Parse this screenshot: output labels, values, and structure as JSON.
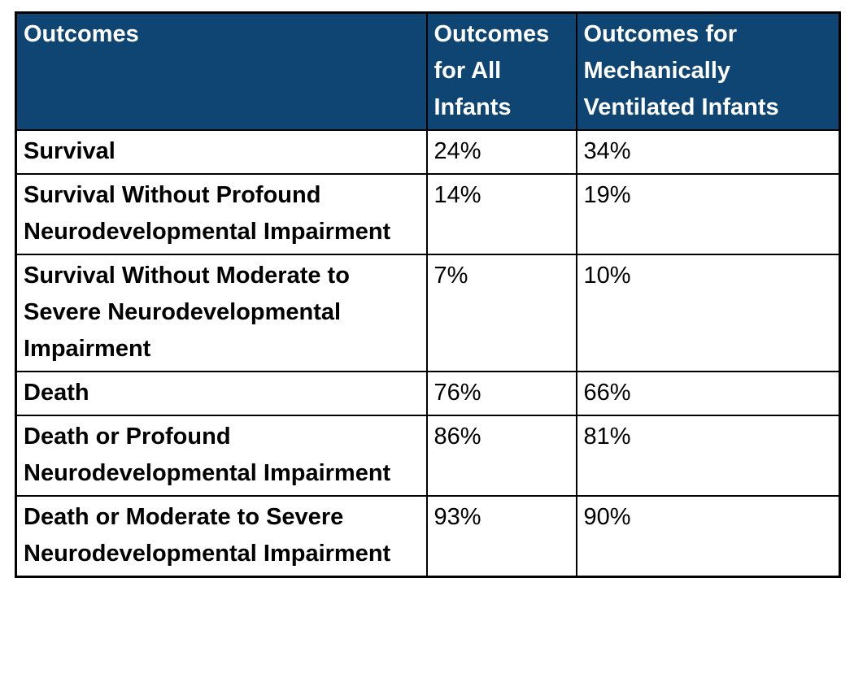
{
  "colors": {
    "header_background": "#0E4573",
    "header_text": "#FFFFFF",
    "border": "#000000",
    "body_text": "#000000"
  },
  "table": {
    "columns": [
      "Outcomes",
      "Outcomes for All Infants",
      "Outcomes for Mechanically Ventilated Infants"
    ],
    "rows": [
      [
        "Survival",
        "24%",
        "34%"
      ],
      [
        "Survival Without Profound Neurodevelopmental Impairment",
        "14%",
        "19%"
      ],
      [
        "Survival Without Moderate to Severe Neurodevelopmental Impairment",
        "7%",
        "10%"
      ],
      [
        "Death",
        "76%",
        "66%"
      ],
      [
        "Death or Profound Neurodevelopmental Impairment",
        "86%",
        "81%"
      ],
      [
        "Death or Moderate to Severe Neurodevelopmental Impairment",
        "93%",
        "90%"
      ]
    ]
  }
}
